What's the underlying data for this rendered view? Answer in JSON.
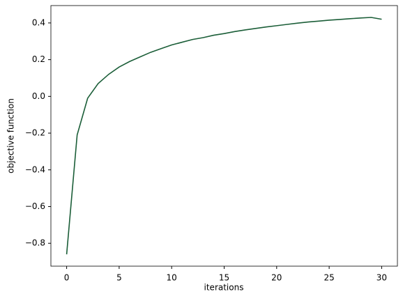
{
  "chart_data": {
    "type": "line",
    "xlabel": "iterations",
    "ylabel": "objective function",
    "x": [
      0,
      1,
      2,
      3,
      4,
      5,
      6,
      7,
      8,
      9,
      10,
      11,
      12,
      13,
      14,
      15,
      16,
      17,
      18,
      19,
      20,
      21,
      22,
      23,
      24,
      25,
      26,
      27,
      28,
      29,
      30
    ],
    "series": [
      {
        "color": "#1b5e38",
        "values": [
          -0.86,
          -0.21,
          -0.01,
          0.07,
          0.12,
          0.16,
          0.19,
          0.215,
          0.24,
          0.26,
          0.28,
          0.295,
          0.31,
          0.32,
          0.333,
          0.342,
          0.353,
          0.362,
          0.37,
          0.378,
          0.385,
          0.392,
          0.399,
          0.405,
          0.41,
          0.415,
          0.419,
          0.423,
          0.427,
          0.43,
          0.42
        ]
      }
    ],
    "xlim": [
      -1.5,
      31.5
    ],
    "ylim": [
      -0.9245,
      0.4945
    ],
    "xticks": [
      0,
      5,
      10,
      15,
      20,
      25,
      30
    ],
    "yticks": [
      {
        "value": -0.8,
        "label": "−0.8"
      },
      {
        "value": -0.6,
        "label": "−0.6"
      },
      {
        "value": -0.4,
        "label": "−0.4"
      },
      {
        "value": -0.2,
        "label": "−0.2"
      },
      {
        "value": 0,
        "label": "0.0"
      },
      0.2,
      0.4
    ],
    "grid": false
  }
}
